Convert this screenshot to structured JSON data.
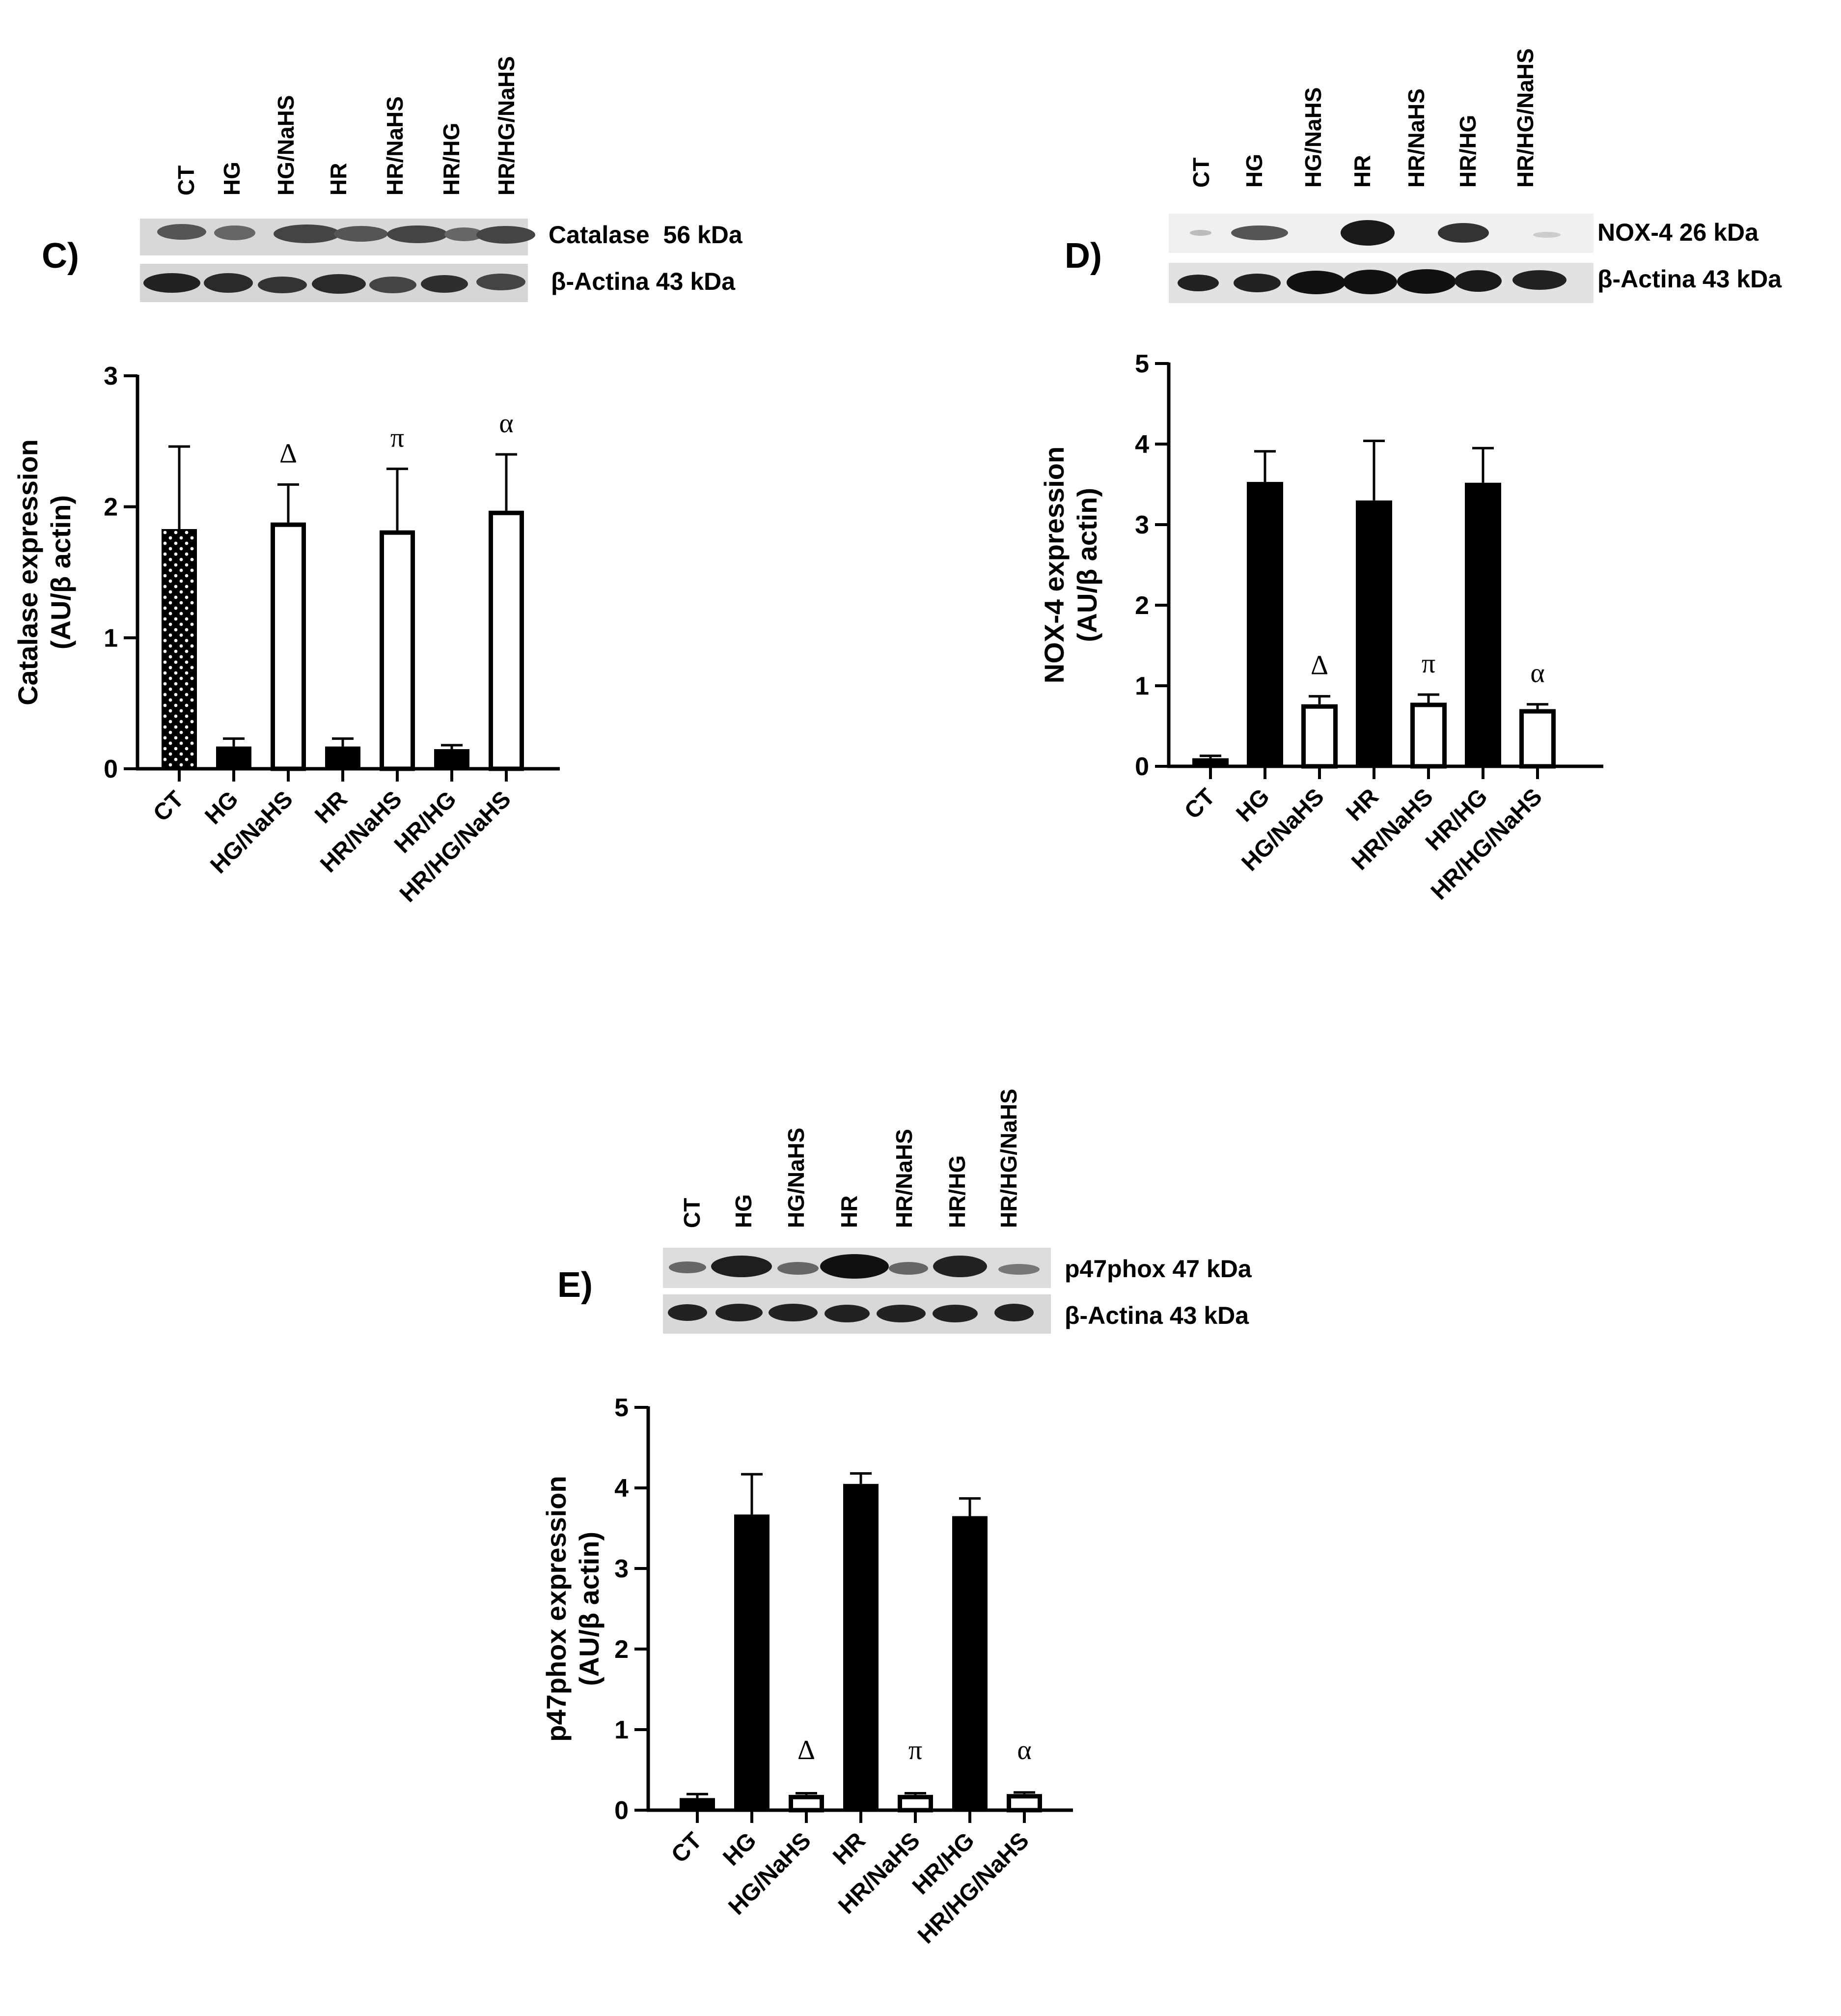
{
  "figure": {
    "lanes": [
      "CT",
      "HG",
      "HG/NaHS",
      "HR",
      "HR/NaHS",
      "HR/HG",
      "HR/HG/NaHS"
    ],
    "colors": {
      "filled": "#000000",
      "open": "#ffffff",
      "stroke": "#000000",
      "dots": "#ffffff"
    }
  },
  "panels": [
    {
      "letter": "C)",
      "blot_labels": [
        "Catalase  56 kDa",
        "β-Actina 43 kDa"
      ],
      "symbols": [
        "Δ",
        "π",
        "α"
      ]
    },
    {
      "letter": "D)",
      "blot_labels": [
        "NOX-4 26 kDa",
        "β-Actina 43 kDa"
      ],
      "symbols": [
        "Δ",
        "π",
        "α"
      ]
    },
    {
      "letter": "E)",
      "blot_labels": [
        "p47phox 47 kDa",
        "β-Actina 43 kDa"
      ],
      "symbols": [
        "Δ",
        "π",
        "α"
      ]
    }
  ],
  "chart_data": [
    {
      "type": "bar",
      "panel": "C",
      "categories": [
        "CT",
        "HG",
        "HG/NaHS",
        "HR",
        "HR/NaHS",
        "HR/HG",
        "HR/HG/NaHS"
      ],
      "values": [
        1.83,
        0.17,
        1.88,
        0.17,
        1.82,
        0.15,
        1.97
      ],
      "errors": [
        0.63,
        0.06,
        0.29,
        0.06,
        0.47,
        0.03,
        0.43
      ],
      "fill": [
        "dotted",
        "filled",
        "open",
        "filled",
        "open",
        "filled",
        "open"
      ],
      "annotations": [
        {
          "category": "HG/NaHS",
          "text": "Δ"
        },
        {
          "category": "HR/NaHS",
          "text": "π"
        },
        {
          "category": "HR/HG/NaHS",
          "text": "α"
        }
      ],
      "ylabel_line1": "Catalase expression",
      "ylabel_line2": "(AU/β actin)",
      "ylim": [
        0,
        3
      ],
      "yticks": [
        0,
        1,
        2,
        3
      ]
    },
    {
      "type": "bar",
      "panel": "D",
      "categories": [
        "CT",
        "HG",
        "HG/NaHS",
        "HR",
        "HR/NaHS",
        "HR/HG",
        "HR/HG/NaHS"
      ],
      "values": [
        0.1,
        3.53,
        0.77,
        3.3,
        0.79,
        3.52,
        0.71
      ],
      "errors": [
        0.03,
        0.38,
        0.1,
        0.74,
        0.1,
        0.43,
        0.06
      ],
      "fill": [
        "filled",
        "filled",
        "open",
        "filled",
        "open",
        "filled",
        "open"
      ],
      "annotations": [
        {
          "category": "HG/NaHS",
          "text": "Δ"
        },
        {
          "category": "HR/NaHS",
          "text": "π"
        },
        {
          "category": "HR/HG/NaHS",
          "text": "α"
        }
      ],
      "ylabel_line1": "NOX-4 expression",
      "ylabel_line2": "(AU/β actin)",
      "ylim": [
        0,
        5
      ],
      "yticks": [
        0,
        1,
        2,
        3,
        4,
        5
      ]
    },
    {
      "type": "bar",
      "panel": "E",
      "categories": [
        "CT",
        "HG",
        "HG/NaHS",
        "HR",
        "HR/NaHS",
        "HR/HG",
        "HR/HG/NaHS"
      ],
      "values": [
        0.15,
        3.67,
        0.19,
        4.05,
        0.19,
        3.65,
        0.2
      ],
      "errors": [
        0.05,
        0.5,
        0.02,
        0.13,
        0.02,
        0.22,
        0.02
      ],
      "fill": [
        "filled",
        "filled",
        "open",
        "filled",
        "open",
        "filled",
        "open"
      ],
      "annotations": [
        {
          "category": "HG/NaHS",
          "text": "Δ"
        },
        {
          "category": "HR/NaHS",
          "text": "π"
        },
        {
          "category": "HR/HG/NaHS",
          "text": "α"
        }
      ],
      "ylabel_line1": "p47phox expression",
      "ylabel_line2": "(AU/β actin)",
      "ylim": [
        0,
        5
      ],
      "yticks": [
        0,
        1,
        2,
        3,
        4,
        5
      ]
    }
  ]
}
